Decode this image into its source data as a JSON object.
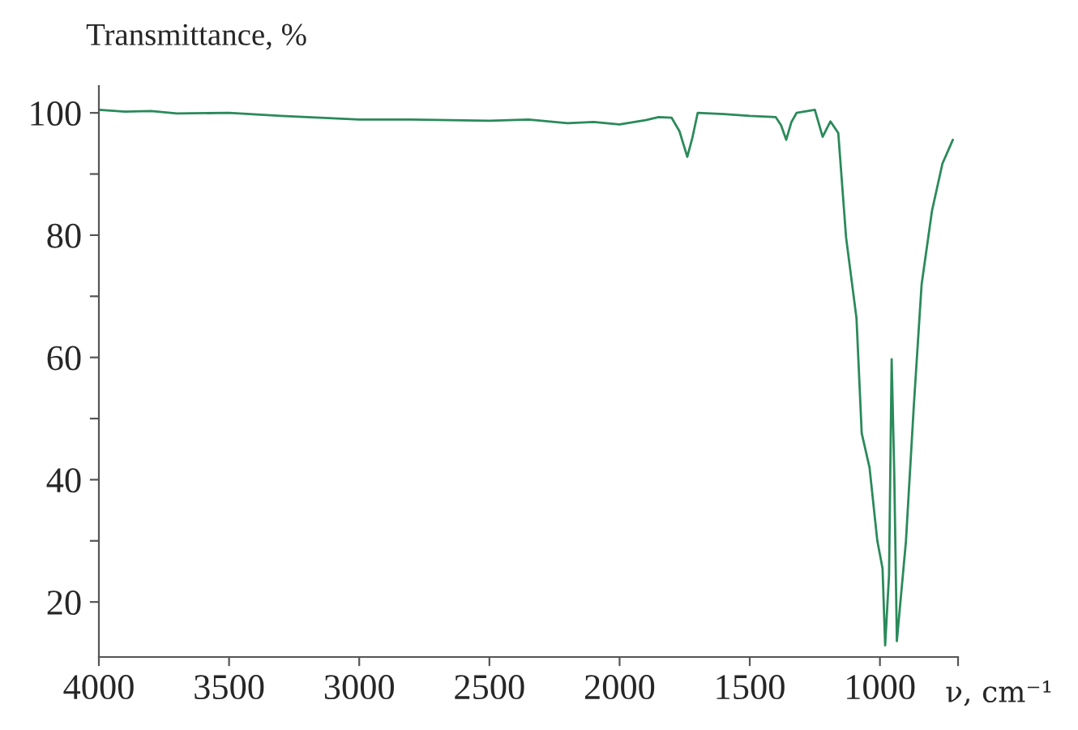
{
  "chart_data": {
    "type": "line",
    "ylabel": "Transmittance, %",
    "xlabel": "ν, cm⁻¹",
    "x": [
      4000,
      3900,
      3800,
      3700,
      3500,
      3300,
      3000,
      2800,
      2500,
      2350,
      2200,
      2100,
      2000,
      1900,
      1850,
      1800,
      1770,
      1740,
      1720,
      1700,
      1600,
      1500,
      1400,
      1380,
      1360,
      1340,
      1320,
      1250,
      1220,
      1190,
      1160,
      1130,
      1090,
      1070,
      1040,
      1010,
      990,
      980,
      965,
      955,
      945,
      935,
      900,
      870,
      840,
      800,
      760,
      720
    ],
    "series": [
      {
        "color": "#2a8a5a",
        "values": [
          100.5,
          100.2,
          100.3,
          99.9,
          100,
          99.5,
          98.9,
          98.9,
          98.7,
          98.9,
          98.3,
          98.5,
          98.1,
          98.8,
          99.3,
          99.2,
          97,
          92.8,
          96,
          100,
          99.8,
          99.5,
          99.3,
          98,
          95.6,
          98.5,
          100,
          100.5,
          96.1,
          98.6,
          96.7,
          79.6,
          66.4,
          47.6,
          42,
          30,
          25.5,
          12.9,
          24.4,
          59.7,
          41,
          13.6,
          30,
          52,
          71.9,
          84,
          91.7,
          95.6
        ]
      }
    ],
    "xlim": [
      4000,
      700
    ],
    "xticks": [
      4000,
      3500,
      3000,
      2500,
      2000,
      1500,
      1000,
      {
        "value": 700,
        "label": null
      }
    ],
    "ylim": [
      11,
      104.4
    ],
    "yticks": [
      {
        "value": 20,
        "label": "20"
      },
      {
        "value": 30,
        "label": null
      },
      {
        "value": 40,
        "label": "40"
      },
      {
        "value": 50,
        "label": null
      },
      {
        "value": 60,
        "label": "60"
      },
      {
        "value": 70,
        "label": null
      },
      {
        "value": 80,
        "label": "80"
      },
      {
        "value": 90,
        "label": null
      },
      {
        "value": 100,
        "label": "100"
      }
    ],
    "grid": false,
    "legend": false
  }
}
